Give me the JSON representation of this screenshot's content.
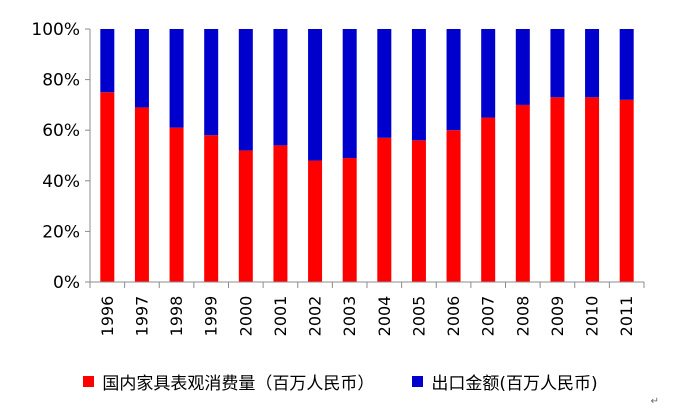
{
  "chart_data": {
    "type": "bar",
    "stacked": true,
    "percent": true,
    "categories": [
      "1996",
      "1997",
      "1998",
      "1999",
      "2000",
      "2001",
      "2002",
      "2003",
      "2004",
      "2005",
      "2006",
      "2007",
      "2008",
      "2009",
      "2010",
      "2011"
    ],
    "series": [
      {
        "name": "国内家具表观消费量（百万人民币）",
        "color": "#ff0000",
        "values": [
          75,
          69,
          61,
          58,
          52,
          54,
          48,
          49,
          57,
          56,
          60,
          65,
          70,
          73,
          73,
          72
        ]
      },
      {
        "name": "出口金额(百万人民币)",
        "color": "#0000cc",
        "values": [
          25,
          31,
          39,
          42,
          48,
          46,
          52,
          51,
          43,
          44,
          40,
          35,
          30,
          27,
          27,
          28
        ]
      }
    ],
    "ylim": [
      0,
      100
    ],
    "yticks": [
      "0%",
      "20%",
      "40%",
      "60%",
      "80%",
      "100%"
    ],
    "grid": false,
    "legend_position": "bottom"
  },
  "legend": {
    "item1_label": "国内家具表观消费量（百万人民币）",
    "item1_color": "#ff0000",
    "item2_label": "出口金额(百万人民币)",
    "item2_color": "#0000cc"
  },
  "corner_mark": "↵"
}
